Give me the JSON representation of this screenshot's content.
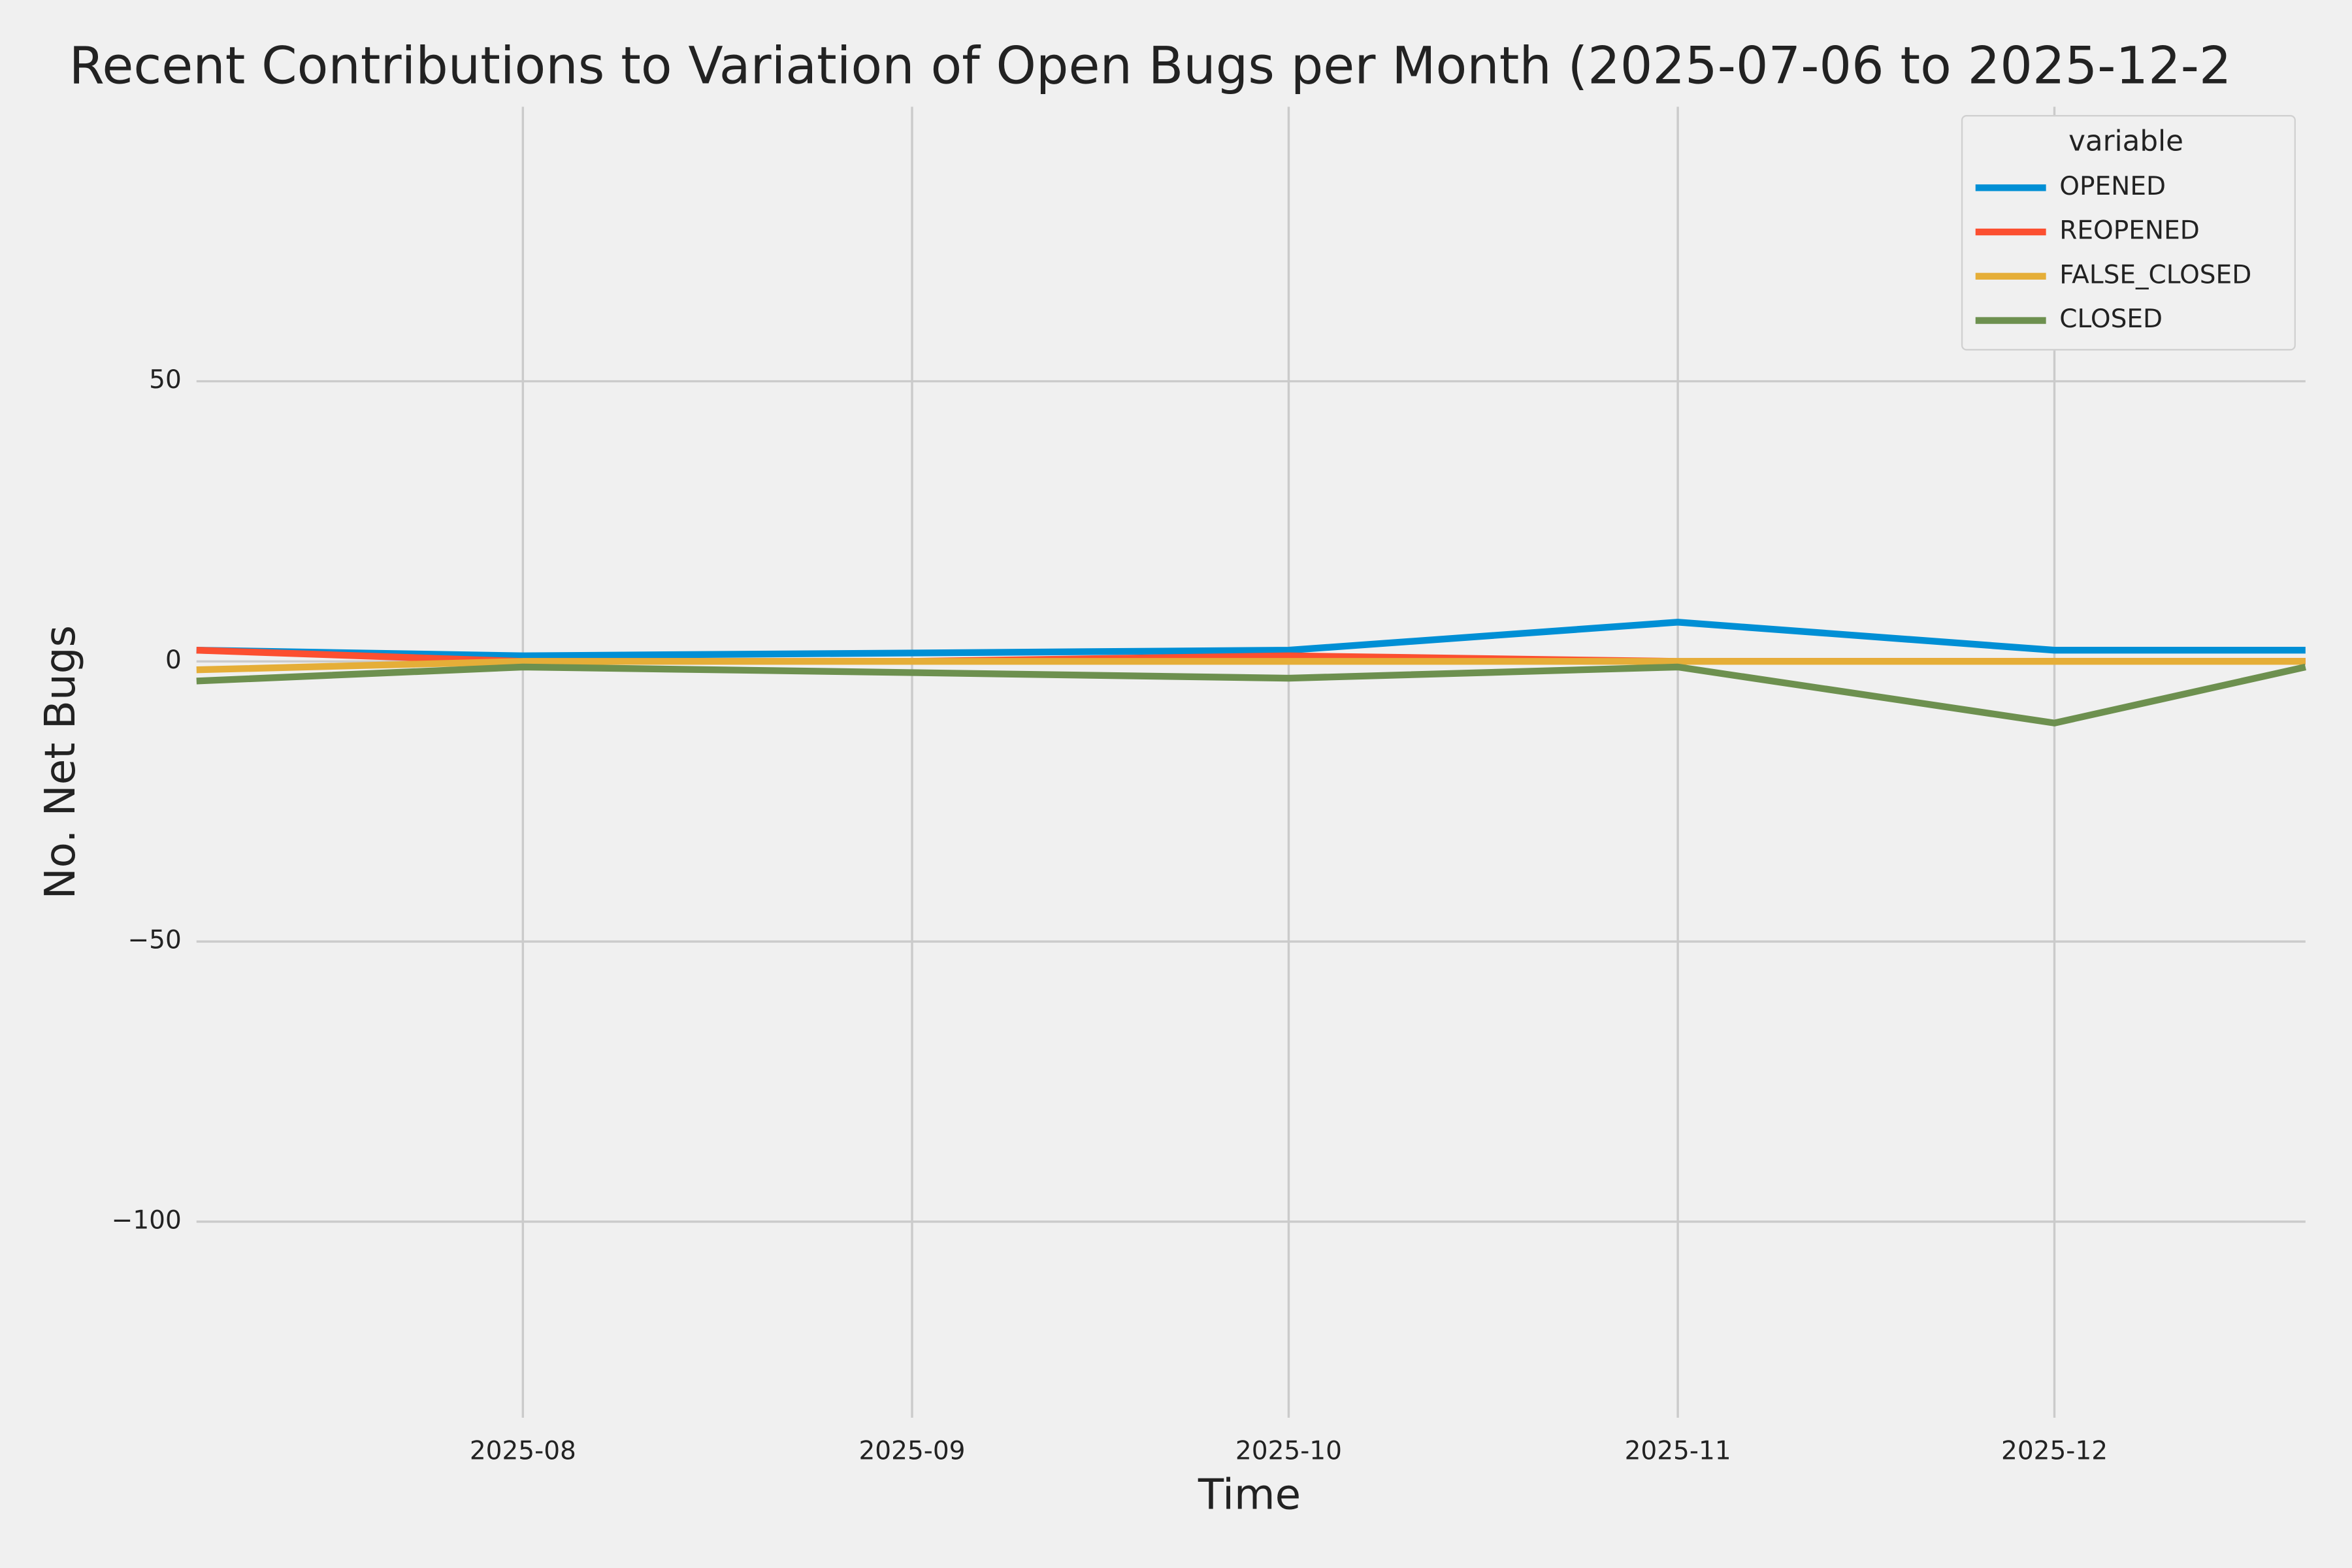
{
  "chart_data": {
    "type": "line",
    "title": "Recent Contributions to Variation of Open Bugs per Month (2025-07-06 to 2025-12-2",
    "x_label": "Time",
    "y_label": "No. Net Bugs",
    "x": [
      "2025-07-06",
      "2025-08",
      "2025-09",
      "2025-10",
      "2025-11",
      "2025-12",
      "2025-12-21"
    ],
    "xlim": [
      "2025-07-06",
      "2025-12-21"
    ],
    "xticks": [
      "2025-08",
      "2025-09",
      "2025-10",
      "2025-11",
      "2025-12"
    ],
    "ylim": [
      -135,
      99
    ],
    "yticks": [
      {
        "value": -100,
        "label": "−100"
      },
      {
        "value": -50,
        "label": "−50"
      },
      0,
      50
    ],
    "grid": true,
    "legend_title": "variable",
    "legend_position": "upper right",
    "series": [
      {
        "name": "OPENED",
        "color": "#008fd5",
        "values": [
          2,
          1,
          1.5,
          2,
          7,
          2,
          2
        ]
      },
      {
        "name": "REOPENED",
        "color": "#fc4f30",
        "values": [
          2,
          0,
          0,
          1,
          0,
          0,
          0
        ]
      },
      {
        "name": "FALSE_CLOSED",
        "color": "#e5ae38",
        "values": [
          -1.5,
          0,
          0,
          0,
          0,
          0,
          0
        ]
      },
      {
        "name": "CLOSED",
        "color": "#6d904f",
        "values": [
          -3.5,
          -1,
          -2,
          -3,
          -1,
          -11,
          -1
        ]
      }
    ]
  }
}
